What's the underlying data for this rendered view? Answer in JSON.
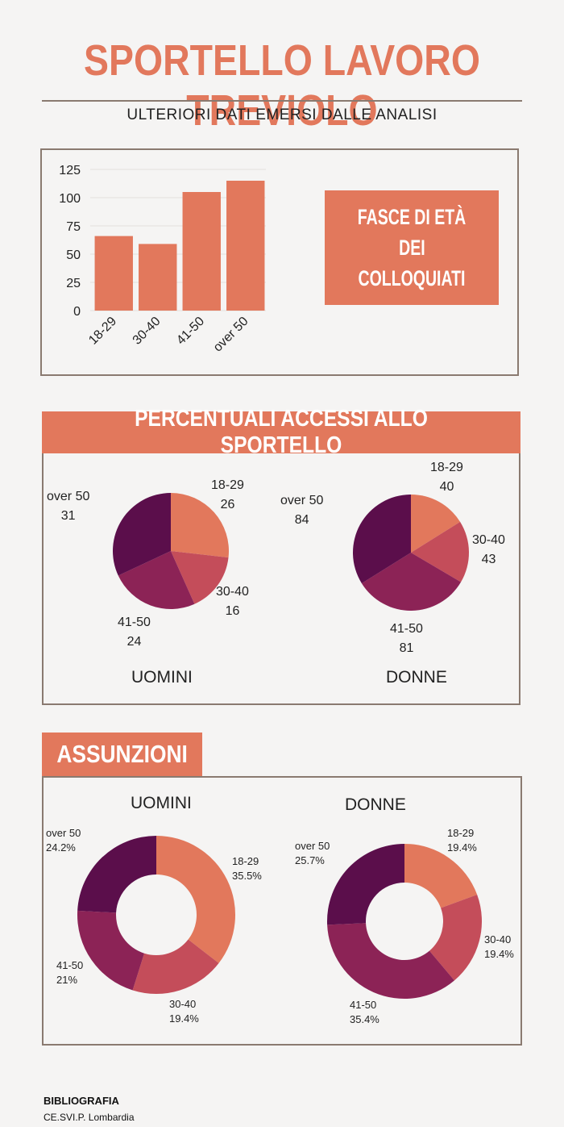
{
  "header": {
    "title": "SPORTELLO LAVORO TREVIOLO",
    "subtitle": "ULTERIORI DATI EMERSI DALLE ANALISI"
  },
  "age_section": {
    "label_line1": "FASCE DI ETÀ",
    "label_line2": "DEI",
    "label_line3": "COLLOQUIATI"
  },
  "access_section": {
    "title": "PERCENTUALI ACCESSI ALLO SPORTELLO",
    "men_label": "UOMINI",
    "women_label": "DONNE"
  },
  "hiring_section": {
    "title": "ASSUNZIONI",
    "men_label": "UOMINI",
    "women_label": "DONNE"
  },
  "colors": {
    "c1": "#e2785c",
    "c2": "#c44d5a",
    "c3": "#8c2356",
    "c4": "#5b0e4b",
    "accent": "#e2785c"
  },
  "chart_data": [
    {
      "type": "bar",
      "categories": [
        "18-29",
        "30-40",
        "41-50",
        "over 50"
      ],
      "values": [
        66,
        59,
        105,
        115
      ],
      "ylim": [
        0,
        125
      ],
      "yticks": [
        0,
        25,
        50,
        75,
        100,
        125
      ],
      "grid": true
    },
    {
      "type": "pie",
      "name": "UOMINI",
      "labels": [
        "18-29",
        "30-40",
        "41-50",
        "over 50"
      ],
      "values": [
        26,
        16,
        24,
        31
      ]
    },
    {
      "type": "pie",
      "name": "DONNE",
      "labels": [
        "18-29",
        "30-40",
        "41-50",
        "over 50"
      ],
      "values": [
        40,
        43,
        81,
        84
      ]
    },
    {
      "type": "pie",
      "name": "UOMINI",
      "donut": true,
      "labels": [
        "18-29",
        "30-40",
        "41-50",
        "over 50"
      ],
      "values": [
        35.5,
        19.4,
        21,
        24.2
      ],
      "value_labels": [
        "35.5%",
        "19.4%",
        "21%",
        "24.2%"
      ]
    },
    {
      "type": "pie",
      "name": "DONNE",
      "donut": true,
      "labels": [
        "18-29",
        "30-40",
        "41-50",
        "over 50"
      ],
      "values": [
        19.4,
        19.4,
        35.4,
        25.7
      ],
      "value_labels": [
        "19.4%",
        "19.4%",
        "35.4%",
        "25.7%"
      ]
    }
  ],
  "bibliography": {
    "heading": "BIBLIOGRAFIA",
    "source": "CE.SVI.P. Lombardia"
  }
}
